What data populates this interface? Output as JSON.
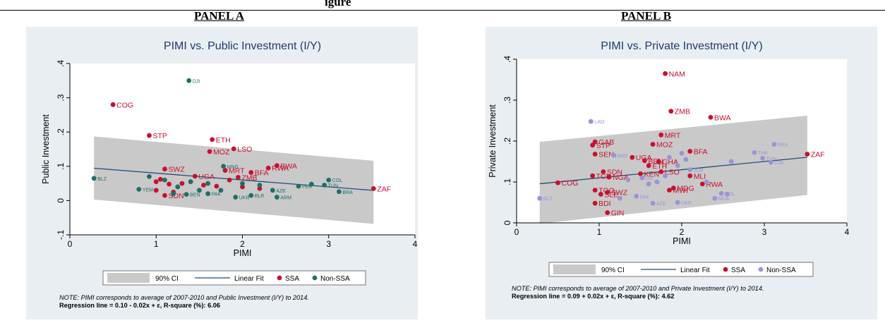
{
  "header": {
    "clipped_title": "igure"
  },
  "panels": [
    {
      "label": "PANEL A"
    },
    {
      "label": "PANEL B"
    }
  ],
  "chart_data": [
    {
      "type": "scatter",
      "title": "PIMI vs. Public Investment (I/Y)",
      "xlabel": "PIMI",
      "ylabel": "Public Investment",
      "xlim": [
        0,
        4
      ],
      "ylim": [
        -0.1,
        0.4
      ],
      "xticks": [
        "0",
        "1",
        "2",
        "3",
        "4"
      ],
      "yticks": [
        "-.1",
        "0",
        ".1",
        ".2",
        ".3",
        ".4"
      ],
      "grid": false,
      "legend_position": "bottom",
      "legend": [
        "90% CI",
        "Linear Fit",
        "SSA",
        "Non-SSA"
      ],
      "colors": {
        "ssa": "#c8102e",
        "nonssa": "#1f6f67",
        "fit": "#1f4e79",
        "ci": "#c9c9c9"
      },
      "fit": {
        "intercept": 0.1,
        "slope": -0.02
      },
      "ci": {
        "x": [
          0.28,
          3.52
        ],
        "upper": [
          0.187,
          0.116
        ],
        "lower": [
          0.003,
          -0.068
        ]
      },
      "series": [
        {
          "name": "SSA",
          "points": [
            {
              "x": 0.5,
              "y": 0.28,
              "label": "COG"
            },
            {
              "x": 0.92,
              "y": 0.19,
              "label": "STP"
            },
            {
              "x": 1.65,
              "y": 0.178,
              "label": "ETH"
            },
            {
              "x": 1.9,
              "y": 0.151,
              "label": "LSO"
            },
            {
              "x": 1.62,
              "y": 0.143,
              "label": "MOZ"
            },
            {
              "x": 3.52,
              "y": 0.035,
              "label": "ZAF"
            },
            {
              "x": 1.1,
              "y": 0.092,
              "label": "SWZ"
            },
            {
              "x": 1.45,
              "y": 0.071,
              "label": "UGA"
            },
            {
              "x": 1.8,
              "y": 0.088,
              "label": "MRT"
            },
            {
              "x": 1.95,
              "y": 0.068,
              "label": "ZMB"
            },
            {
              "x": 2.1,
              "y": 0.082,
              "label": "BFA"
            },
            {
              "x": 2.4,
              "y": 0.102,
              "label": "BWA"
            },
            {
              "x": 2.3,
              "y": 0.095,
              "label": "RWA"
            },
            {
              "x": 1.05,
              "y": 0.062,
              "label": ""
            },
            {
              "x": 1.0,
              "y": 0.055,
              "label": ""
            },
            {
              "x": 1.15,
              "y": 0.048,
              "label": ""
            },
            {
              "x": 1.3,
              "y": 0.05,
              "label": ""
            },
            {
              "x": 1.55,
              "y": 0.045,
              "label": ""
            },
            {
              "x": 1.7,
              "y": 0.042,
              "label": ""
            },
            {
              "x": 1.85,
              "y": 0.06,
              "label": ""
            },
            {
              "x": 2.0,
              "y": 0.04,
              "label": ""
            },
            {
              "x": 2.2,
              "y": 0.035,
              "label": ""
            },
            {
              "x": 1.1,
              "y": 0.015,
              "label": "SDN"
            },
            {
              "x": 1.0,
              "y": 0.03,
              "label": ""
            },
            {
              "x": 1.2,
              "y": 0.025,
              "label": ""
            }
          ]
        },
        {
          "name": "Non-SSA",
          "points": [
            {
              "x": 1.38,
              "y": 0.35,
              "label": "DJI"
            },
            {
              "x": 0.28,
              "y": 0.065,
              "label": "BLZ"
            },
            {
              "x": 0.8,
              "y": 0.033,
              "label": "YEM"
            },
            {
              "x": 3.0,
              "y": 0.06,
              "label": "COL"
            },
            {
              "x": 2.95,
              "y": 0.045,
              "label": "TUN"
            },
            {
              "x": 3.12,
              "y": 0.026,
              "label": "BRA"
            },
            {
              "x": 2.65,
              "y": 0.042,
              "label": "PER"
            },
            {
              "x": 2.4,
              "y": 0.01,
              "label": "ARM"
            },
            {
              "x": 1.78,
              "y": 0.1,
              "label": "MNG"
            },
            {
              "x": 2.35,
              "y": 0.03,
              "label": "AZE"
            },
            {
              "x": 1.92,
              "y": 0.01,
              "label": "UKR"
            },
            {
              "x": 2.1,
              "y": 0.015,
              "label": "BLR"
            },
            {
              "x": 1.6,
              "y": 0.02,
              "label": "PAK"
            },
            {
              "x": 1.35,
              "y": 0.018,
              "label": "BEN"
            },
            {
              "x": 0.92,
              "y": 0.07,
              "label": ""
            },
            {
              "x": 1.1,
              "y": 0.06,
              "label": ""
            },
            {
              "x": 1.25,
              "y": 0.04,
              "label": ""
            },
            {
              "x": 1.4,
              "y": 0.055,
              "label": ""
            },
            {
              "x": 1.6,
              "y": 0.05,
              "label": ""
            },
            {
              "x": 1.75,
              "y": 0.03,
              "label": ""
            },
            {
              "x": 2.0,
              "y": 0.05,
              "label": ""
            },
            {
              "x": 2.2,
              "y": 0.045,
              "label": ""
            },
            {
              "x": 2.8,
              "y": 0.048,
              "label": ""
            },
            {
              "x": 1.2,
              "y": 0.02,
              "label": ""
            },
            {
              "x": 1.5,
              "y": 0.03,
              "label": ""
            }
          ]
        }
      ],
      "note_line1": "NOTE: PIMI corresponds to average of 2007-2010 and Public Investment (I/Y) to 2014.",
      "note_line2": "Regression line  =  0.10 -  0.02x + ε,   R-square (%):  6.06"
    },
    {
      "type": "scatter",
      "title": "PIMI vs. Private Investment (I/Y)",
      "xlabel": "PIMI",
      "ylabel": "Private Investment",
      "xlim": [
        0,
        4
      ],
      "ylim": [
        0,
        0.4
      ],
      "xticks": [
        "0",
        "1",
        "2",
        "3",
        "4"
      ],
      "yticks": [
        "0",
        ".1",
        ".2",
        ".3",
        ".4"
      ],
      "grid": false,
      "legend_position": "bottom",
      "legend": [
        "90% CI",
        "Linear Fit",
        "SSA",
        "Non-SSA"
      ],
      "colors": {
        "ssa": "#c8102e",
        "nonssa": "#9a94d6",
        "fit": "#1f4e79",
        "ci": "#c9c9c9"
      },
      "fit": {
        "intercept": 0.09,
        "slope": 0.02
      },
      "ci": {
        "x": [
          0.28,
          3.52
        ],
        "upper": [
          0.198,
          0.262
        ],
        "lower": [
          -0.002,
          0.068
        ]
      },
      "series": [
        {
          "name": "SSA",
          "points": [
            {
              "x": 1.8,
              "y": 0.365,
              "label": "NAM"
            },
            {
              "x": 1.87,
              "y": 0.273,
              "label": "ZMB"
            },
            {
              "x": 2.35,
              "y": 0.258,
              "label": "BWA"
            },
            {
              "x": 1.75,
              "y": 0.215,
              "label": "MRT"
            },
            {
              "x": 0.95,
              "y": 0.198,
              "label": "GAB"
            },
            {
              "x": 0.92,
              "y": 0.19,
              "label": "STP"
            },
            {
              "x": 1.65,
              "y": 0.192,
              "label": "MOZ"
            },
            {
              "x": 0.95,
              "y": 0.168,
              "label": "SEN"
            },
            {
              "x": 2.1,
              "y": 0.175,
              "label": "BFA"
            },
            {
              "x": 1.4,
              "y": 0.16,
              "label": "UGA"
            },
            {
              "x": 1.55,
              "y": 0.152,
              "label": "BEN"
            },
            {
              "x": 1.72,
              "y": 0.15,
              "label": "GHA"
            },
            {
              "x": 1.6,
              "y": 0.14,
              "label": "ETH"
            },
            {
              "x": 1.75,
              "y": 0.125,
              "label": "LSO"
            },
            {
              "x": 1.05,
              "y": 0.125,
              "label": "SDN"
            },
            {
              "x": 1.5,
              "y": 0.12,
              "label": "KEN"
            },
            {
              "x": 2.1,
              "y": 0.115,
              "label": "MLI"
            },
            {
              "x": 0.92,
              "y": 0.115,
              "label": "TCD"
            },
            {
              "x": 1.12,
              "y": 0.112,
              "label": "NGA"
            },
            {
              "x": 0.5,
              "y": 0.098,
              "label": "COG"
            },
            {
              "x": 2.25,
              "y": 0.095,
              "label": "RWA"
            },
            {
              "x": 1.9,
              "y": 0.085,
              "label": "MDG"
            },
            {
              "x": 1.85,
              "y": 0.08,
              "label": "MWI"
            },
            {
              "x": 0.95,
              "y": 0.08,
              "label": "TGO"
            },
            {
              "x": 1.1,
              "y": 0.075,
              "label": "SWZ"
            },
            {
              "x": 1.02,
              "y": 0.07,
              "label": "SLE"
            },
            {
              "x": 0.95,
              "y": 0.048,
              "label": "BDI"
            },
            {
              "x": 1.1,
              "y": 0.025,
              "label": "GIN"
            },
            {
              "x": 3.52,
              "y": 0.168,
              "label": "ZAF"
            }
          ]
        },
        {
          "name": "Non-SSA",
          "points": [
            {
              "x": 0.9,
              "y": 0.248,
              "label": "LAO"
            },
            {
              "x": 0.28,
              "y": 0.06,
              "label": "BLZ"
            },
            {
              "x": 1.18,
              "y": 0.165,
              "label": "BRB"
            },
            {
              "x": 3.12,
              "y": 0.192,
              "label": "BRA"
            },
            {
              "x": 2.88,
              "y": 0.172,
              "label": "THA"
            },
            {
              "x": 2.98,
              "y": 0.158,
              "label": "TUN"
            },
            {
              "x": 3.08,
              "y": 0.148,
              "label": "COL"
            },
            {
              "x": 2.1,
              "y": 0.13,
              "label": "JOR"
            },
            {
              "x": 1.52,
              "y": 0.11,
              "label": "DJI"
            },
            {
              "x": 1.45,
              "y": 0.065,
              "label": "PAK"
            },
            {
              "x": 1.65,
              "y": 0.048,
              "label": "AZE"
            },
            {
              "x": 1.95,
              "y": 0.05,
              "label": "UKR"
            },
            {
              "x": 2.4,
              "y": 0.06,
              "label": "MDA"
            },
            {
              "x": 2.48,
              "y": 0.072,
              "label": "BOL"
            },
            {
              "x": 2.0,
              "y": 0.17,
              "label": ""
            },
            {
              "x": 1.85,
              "y": 0.16,
              "label": ""
            },
            {
              "x": 2.05,
              "y": 0.155,
              "label": ""
            },
            {
              "x": 1.95,
              "y": 0.14,
              "label": ""
            },
            {
              "x": 2.6,
              "y": 0.15,
              "label": ""
            },
            {
              "x": 1.8,
              "y": 0.115,
              "label": ""
            },
            {
              "x": 1.7,
              "y": 0.1,
              "label": ""
            },
            {
              "x": 1.35,
              "y": 0.105,
              "label": ""
            },
            {
              "x": 2.3,
              "y": 0.1,
              "label": ""
            },
            {
              "x": 1.25,
              "y": 0.06,
              "label": ""
            },
            {
              "x": 2.55,
              "y": 0.07,
              "label": ""
            },
            {
              "x": 1.6,
              "y": 0.095,
              "label": ""
            }
          ]
        }
      ],
      "note_line1": "NOTE: PIMI corresponds to average of 2007-2010 and Private Investment (I/Y) to 2014.",
      "note_line2": "Regression line  =  0.09 +  0.02x + ε,   R-square (%):  4.62"
    }
  ]
}
